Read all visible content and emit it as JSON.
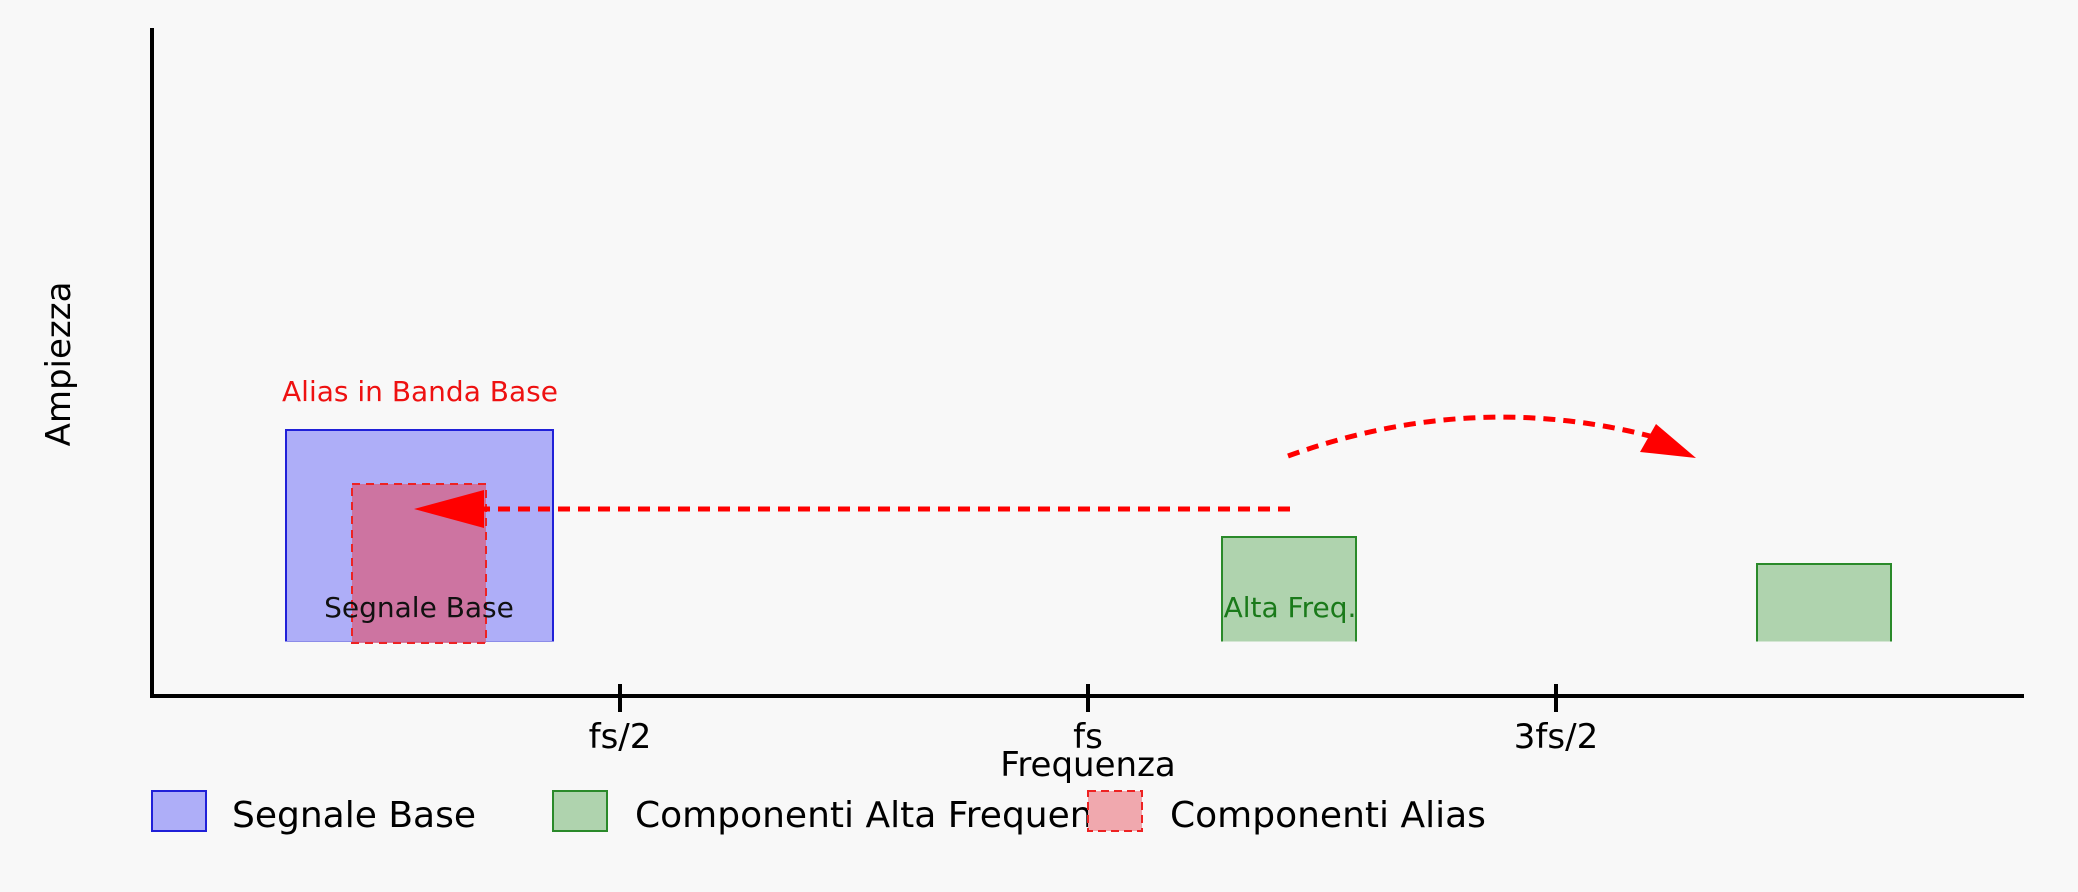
{
  "axes": {
    "ylabel": "Ampiezza",
    "xlabel": "Frequenza",
    "ticks": [
      {
        "id": "half",
        "label": "fs/2"
      },
      {
        "id": "fs",
        "label": "fs"
      },
      {
        "id": "three-half",
        "label": "3fs/2"
      }
    ]
  },
  "blocks": {
    "base": {
      "label": "Segnale Base"
    },
    "alias": {
      "label": "Alias in Banda Base"
    },
    "high1": {
      "label": "Alta Freq."
    },
    "high2": {
      "label": ""
    }
  },
  "legend": {
    "items": [
      {
        "label": "Segnale Base",
        "fill": "#aeaef8",
        "stroke": "#2020d8"
      },
      {
        "label": "Componenti Alta Frequenza",
        "fill": "#afd3ae",
        "stroke": "#2a8a2a"
      },
      {
        "label": "Componenti Alias",
        "fill": "#f0a8ae",
        "stroke": "#ee2222"
      }
    ]
  },
  "colors": {
    "axis": "#000000",
    "base_fill": "#aeaef8",
    "base_stroke": "#2020d8",
    "high_fill": "#afd3ae",
    "high_stroke": "#2a8a2a",
    "high_text": "#1a7a1a",
    "alias_fill": "#d26a92",
    "alias_stroke": "#ee2222",
    "alias_text": "#ee1111",
    "arrow": "#ff0000"
  }
}
